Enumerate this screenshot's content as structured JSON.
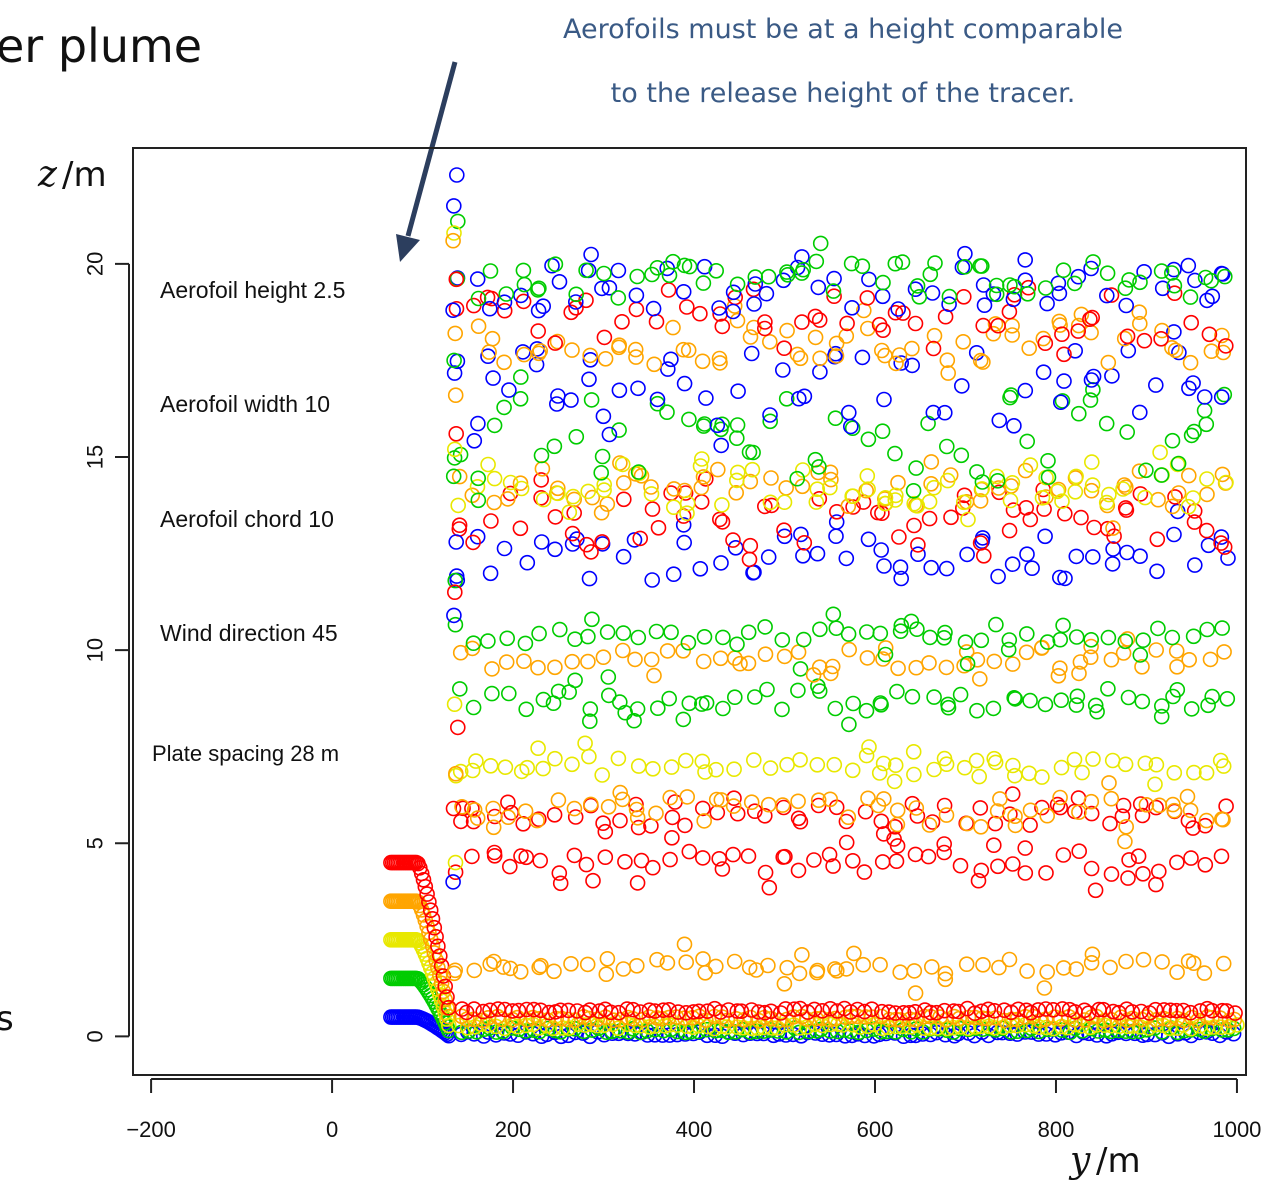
{
  "slide": {
    "title_fragment": "er plume",
    "left_edge_fragment": "s",
    "callout_line1": "Aerofoils must be at a height comparable",
    "callout_line2": "to the release height of the tracer.",
    "callout_color": "#3a5a85"
  },
  "params": {
    "aerofoil_height": "Aerofoil height  2.5",
    "aerofoil_width": "Aerofoil width  10",
    "aerofoil_chord": "Aerofoil chord  10",
    "wind_direction": "Wind direction  45",
    "plate_spacing": "Plate spacing  28 m"
  },
  "chart_data": {
    "type": "scatter",
    "xlabel_var": "y",
    "xlabel_unit": "/m",
    "ylabel_var": "z",
    "ylabel_unit": "/m",
    "xlim": [
      -220,
      1010
    ],
    "ylim": [
      -1,
      23
    ],
    "x_ticks": [
      -200,
      0,
      200,
      400,
      600,
      800,
      1000
    ],
    "y_ticks": [
      0,
      5,
      10,
      15,
      20
    ],
    "marker": "open-circle",
    "grid": false,
    "series_colors": {
      "blue": "#0000ff",
      "green": "#00cc00",
      "yellow": "#e8e800",
      "orange": "#ffa500",
      "red": "#ff0000"
    },
    "release_heights": {
      "blue": 0.5,
      "green": 1.5,
      "yellow": 2.5,
      "orange": 3.5,
      "red": 4.5
    },
    "release_x_range": [
      65,
      130
    ],
    "ground_layer_z": [
      0,
      0.1,
      0.2,
      0.4,
      0.6
    ],
    "far_field_x_range": [
      140,
      1000
    ],
    "bands": [
      {
        "color": "orange",
        "z": 1.8,
        "spread": 0.2
      },
      {
        "color": "red",
        "z": 4.5,
        "spread": 0.3
      },
      {
        "color": "red",
        "z": 5.7,
        "spread": 0.3
      },
      {
        "color": "orange",
        "z": 5.8,
        "spread": 0.4
      },
      {
        "color": "yellow",
        "z": 7.0,
        "spread": 0.3
      },
      {
        "color": "green",
        "z": 8.7,
        "spread": 0.3
      },
      {
        "color": "orange",
        "z": 9.8,
        "spread": 0.3
      },
      {
        "color": "green",
        "z": 10.4,
        "spread": 0.3
      },
      {
        "color": "blue",
        "z": 12.4,
        "spread": 0.6
      },
      {
        "color": "red",
        "z": 13.4,
        "spread": 0.7
      },
      {
        "color": "orange",
        "z": 14.2,
        "spread": 0.5
      },
      {
        "color": "yellow",
        "z": 14.3,
        "spread": 0.6
      },
      {
        "color": "green",
        "z": 15.5,
        "spread": 1.2
      },
      {
        "color": "blue",
        "z": 16.8,
        "spread": 1.0
      },
      {
        "color": "orange",
        "z": 18.0,
        "spread": 0.6
      },
      {
        "color": "red",
        "z": 18.6,
        "spread": 0.8
      },
      {
        "color": "blue",
        "z": 19.4,
        "spread": 0.6
      },
      {
        "color": "green",
        "z": 19.6,
        "spread": 0.5
      }
    ]
  }
}
